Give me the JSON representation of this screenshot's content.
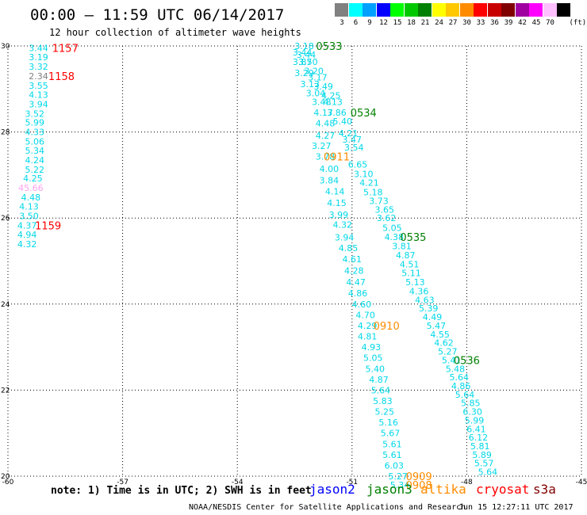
{
  "title": "00:00 – 11:59 UTC 06/14/2017",
  "subtitle": "12 hour collection of altimeter wave heights",
  "legend": {
    "unit_label": "(ft)",
    "bins": [
      {
        "label": "3",
        "color": "#808080"
      },
      {
        "label": "6",
        "color": "#00ffff"
      },
      {
        "label": "9",
        "color": "#00a0ff"
      },
      {
        "label": "12",
        "color": "#0000ff"
      },
      {
        "label": "15",
        "color": "#00ff00"
      },
      {
        "label": "18",
        "color": "#00c800"
      },
      {
        "label": "21",
        "color": "#008000"
      },
      {
        "label": "24",
        "color": "#ffff00"
      },
      {
        "label": "27",
        "color": "#ffc800"
      },
      {
        "label": "30",
        "color": "#ff8c00"
      },
      {
        "label": "33",
        "color": "#ff0000"
      },
      {
        "label": "36",
        "color": "#c80000"
      },
      {
        "label": "39",
        "color": "#800000"
      },
      {
        "label": "42",
        "color": "#a000a0"
      },
      {
        "label": "45",
        "color": "#ff00ff"
      },
      {
        "label": "70",
        "color": "#ffc0ff"
      },
      {
        "label": "",
        "color": "#000000"
      }
    ]
  },
  "map": {
    "lon_range": [
      -60,
      -45
    ],
    "lat_range": [
      20,
      30
    ],
    "lon_ticks": [
      "-60",
      "-57",
      "-54",
      "-51",
      "-48",
      "-45"
    ],
    "lat_ticks": [
      "20",
      "22",
      "24",
      "26",
      "28",
      "30"
    ],
    "grid": "dotted"
  },
  "chart_data": {
    "type": "scatter",
    "tracks": [
      {
        "color": "#00d8e8",
        "points": [
          {
            "lon": -59.2,
            "lat": 29.95,
            "label": "3.44"
          },
          {
            "lon": -59.2,
            "lat": 29.74,
            "label": "3.19"
          },
          {
            "lon": -59.2,
            "lat": 29.52,
            "label": "3.32"
          },
          {
            "lon": -59.2,
            "lat": 29.3,
            "label": "2.34",
            "color": "#808080"
          },
          {
            "lon": -59.2,
            "lat": 29.08,
            "label": "3.55"
          },
          {
            "lon": -59.2,
            "lat": 28.87,
            "label": "4.13"
          },
          {
            "lon": -59.2,
            "lat": 28.65,
            "label": "3.94"
          },
          {
            "lon": -59.3,
            "lat": 28.43,
            "label": "3.52"
          },
          {
            "lon": -59.3,
            "lat": 28.22,
            "label": "5.99"
          },
          {
            "lon": -59.3,
            "lat": 28.0,
            "label": "4.33"
          },
          {
            "lon": -59.3,
            "lat": 27.78,
            "label": "5.06"
          },
          {
            "lon": -59.3,
            "lat": 27.57,
            "label": "5.34"
          },
          {
            "lon": -59.3,
            "lat": 27.35,
            "label": "4.24"
          },
          {
            "lon": -59.3,
            "lat": 27.13,
            "label": "5.22"
          },
          {
            "lon": -59.35,
            "lat": 26.92,
            "label": "4.25"
          },
          {
            "lon": -59.4,
            "lat": 26.7,
            "label": "45.66",
            "color": "#ffa0f0"
          },
          {
            "lon": -59.4,
            "lat": 26.48,
            "label": "4.48"
          },
          {
            "lon": -59.45,
            "lat": 26.27,
            "label": "4.13"
          },
          {
            "lon": -59.45,
            "lat": 26.05,
            "label": "3.50"
          },
          {
            "lon": -59.5,
            "lat": 25.83,
            "label": "4.37"
          },
          {
            "lon": -59.5,
            "lat": 25.62,
            "label": "4.94"
          },
          {
            "lon": -59.5,
            "lat": 25.4,
            "label": "4.32"
          }
        ]
      },
      {
        "color": "#00d8e8",
        "points": [
          {
            "lon": -52.25,
            "lat": 30.0,
            "label": "3.18"
          },
          {
            "lon": -52.3,
            "lat": 29.85,
            "label": "3.44"
          },
          {
            "lon": -52.2,
            "lat": 29.8,
            "label": "3.44"
          },
          {
            "lon": -52.3,
            "lat": 29.63,
            "label": "3.87"
          },
          {
            "lon": -52.15,
            "lat": 29.63,
            "label": "3.50"
          },
          {
            "lon": -52.0,
            "lat": 29.42,
            "label": "3.20"
          },
          {
            "lon": -52.25,
            "lat": 29.37,
            "label": "3.29"
          },
          {
            "lon": -51.9,
            "lat": 29.27,
            "label": "3.17"
          },
          {
            "lon": -52.1,
            "lat": 29.12,
            "label": "3.13"
          },
          {
            "lon": -51.75,
            "lat": 29.06,
            "label": "3.49"
          },
          {
            "lon": -51.95,
            "lat": 28.9,
            "label": "3.04"
          },
          {
            "lon": -51.55,
            "lat": 28.85,
            "label": "4.25"
          },
          {
            "lon": -51.8,
            "lat": 28.7,
            "label": "3.48"
          },
          {
            "lon": -51.5,
            "lat": 28.7,
            "label": "4.13"
          },
          {
            "lon": -51.75,
            "lat": 28.45,
            "label": "4.17"
          },
          {
            "lon": -51.4,
            "lat": 28.45,
            "label": "3.86"
          },
          {
            "lon": -51.25,
            "lat": 28.25,
            "label": "5.40"
          },
          {
            "lon": -51.7,
            "lat": 28.2,
            "label": "4.48"
          },
          {
            "lon": -51.1,
            "lat": 27.97,
            "label": "4.21"
          },
          {
            "lon": -51.7,
            "lat": 27.92,
            "label": "4.27"
          },
          {
            "lon": -51.0,
            "lat": 27.83,
            "label": "3.47"
          },
          {
            "lon": -51.8,
            "lat": 27.68,
            "label": "3.27"
          },
          {
            "lon": -50.95,
            "lat": 27.64,
            "label": "3.54"
          },
          {
            "lon": -51.7,
            "lat": 27.43,
            "label": "3.78"
          },
          {
            "lon": -50.85,
            "lat": 27.25,
            "label": "6.65"
          },
          {
            "lon": -51.6,
            "lat": 27.15,
            "label": "4.00"
          },
          {
            "lon": -50.7,
            "lat": 27.03,
            "label": "3.10"
          },
          {
            "lon": -51.6,
            "lat": 26.88,
            "label": "3.84"
          },
          {
            "lon": -50.55,
            "lat": 26.82,
            "label": "4.21"
          },
          {
            "lon": -51.45,
            "lat": 26.62,
            "label": "4.14"
          },
          {
            "lon": -50.45,
            "lat": 26.6,
            "label": "5.18"
          },
          {
            "lon": -50.3,
            "lat": 26.4,
            "label": "3.73"
          },
          {
            "lon": -51.4,
            "lat": 26.35,
            "label": "4.15"
          },
          {
            "lon": -50.15,
            "lat": 26.2,
            "label": "3.65"
          },
          {
            "lon": -51.35,
            "lat": 26.08,
            "label": "3.99"
          },
          {
            "lon": -50.1,
            "lat": 26.0,
            "label": "3.62"
          },
          {
            "lon": -51.25,
            "lat": 25.85,
            "label": "4.32"
          },
          {
            "lon": -49.95,
            "lat": 25.77,
            "label": "5.05"
          },
          {
            "lon": -51.2,
            "lat": 25.55,
            "label": "3.94"
          },
          {
            "lon": -49.9,
            "lat": 25.56,
            "label": "4.38"
          },
          {
            "lon": -51.1,
            "lat": 25.3,
            "label": "4.85"
          },
          {
            "lon": -49.7,
            "lat": 25.35,
            "label": "3.81"
          },
          {
            "lon": -51.0,
            "lat": 25.05,
            "label": "4.61"
          },
          {
            "lon": -49.6,
            "lat": 25.14,
            "label": "4.87"
          },
          {
            "lon": -50.95,
            "lat": 24.78,
            "label": "4.28"
          },
          {
            "lon": -49.5,
            "lat": 24.93,
            "label": "4.51"
          },
          {
            "lon": -50.9,
            "lat": 24.51,
            "label": "4.47"
          },
          {
            "lon": -49.45,
            "lat": 24.72,
            "label": "5.11"
          },
          {
            "lon": -50.85,
            "lat": 24.25,
            "label": "4.86"
          },
          {
            "lon": -49.35,
            "lat": 24.51,
            "label": "5.13"
          },
          {
            "lon": -49.25,
            "lat": 24.3,
            "label": "4.36"
          },
          {
            "lon": -50.75,
            "lat": 24.0,
            "label": "4.60"
          },
          {
            "lon": -49.1,
            "lat": 24.1,
            "label": "4.63"
          },
          {
            "lon": -50.65,
            "lat": 23.75,
            "label": "4.70"
          },
          {
            "lon": -49.0,
            "lat": 23.9,
            "label": "5.39"
          },
          {
            "lon": -50.6,
            "lat": 23.5,
            "label": "4.29"
          },
          {
            "lon": -48.9,
            "lat": 23.7,
            "label": "4.49"
          },
          {
            "lon": -50.6,
            "lat": 23.25,
            "label": "4.81"
          },
          {
            "lon": -48.8,
            "lat": 23.5,
            "label": "5.47"
          },
          {
            "lon": -48.7,
            "lat": 23.3,
            "label": "4.55"
          },
          {
            "lon": -50.5,
            "lat": 23.0,
            "label": "4.93"
          },
          {
            "lon": -48.6,
            "lat": 23.1,
            "label": "4.62"
          },
          {
            "lon": -50.45,
            "lat": 22.75,
            "label": "5.05"
          },
          {
            "lon": -48.5,
            "lat": 22.9,
            "label": "5.27"
          },
          {
            "lon": -50.4,
            "lat": 22.5,
            "label": "5.40"
          },
          {
            "lon": -48.4,
            "lat": 22.7,
            "label": "5.41"
          },
          {
            "lon": -48.3,
            "lat": 22.5,
            "label": "5.48"
          },
          {
            "lon": -50.3,
            "lat": 22.25,
            "label": "4.87"
          },
          {
            "lon": -48.2,
            "lat": 22.3,
            "label": "5.64"
          },
          {
            "lon": -50.25,
            "lat": 22.0,
            "label": "5.64"
          },
          {
            "lon": -48.15,
            "lat": 22.1,
            "label": "4.86"
          },
          {
            "lon": -50.2,
            "lat": 21.75,
            "label": "5.83"
          },
          {
            "lon": -48.05,
            "lat": 21.9,
            "label": "5.64"
          },
          {
            "lon": -50.15,
            "lat": 21.5,
            "label": "5.25"
          },
          {
            "lon": -47.9,
            "lat": 21.7,
            "label": "5.85"
          },
          {
            "lon": -50.05,
            "lat": 21.25,
            "label": "5.16"
          },
          {
            "lon": -47.85,
            "lat": 21.5,
            "label": "6.30"
          },
          {
            "lon": -50.0,
            "lat": 21.0,
            "label": "5.67"
          },
          {
            "lon": -47.8,
            "lat": 21.3,
            "label": "5.99"
          },
          {
            "lon": -49.95,
            "lat": 20.75,
            "label": "5.61"
          },
          {
            "lon": -47.75,
            "lat": 21.1,
            "label": "6.41"
          },
          {
            "lon": -47.7,
            "lat": 20.9,
            "label": "6.12"
          },
          {
            "lon": -49.95,
            "lat": 20.5,
            "label": "5.61"
          },
          {
            "lon": -47.65,
            "lat": 20.7,
            "label": "5.81"
          },
          {
            "lon": -49.9,
            "lat": 20.25,
            "label": "6.03"
          },
          {
            "lon": -47.6,
            "lat": 20.5,
            "label": "5.89"
          },
          {
            "lon": -49.8,
            "lat": 20.0,
            "label": "5.27"
          },
          {
            "lon": -47.55,
            "lat": 20.3,
            "label": "5.57"
          },
          {
            "lon": -49.75,
            "lat": 19.8,
            "label": "5.34"
          },
          {
            "lon": -47.45,
            "lat": 20.1,
            "label": "5.64"
          }
        ]
      }
    ],
    "time_labels": [
      {
        "lon": -58.5,
        "lat": 29.95,
        "label": "1157",
        "color": "#ff0000"
      },
      {
        "lon": -58.6,
        "lat": 29.3,
        "label": "1158",
        "color": "#ff0000"
      },
      {
        "lon": -58.95,
        "lat": 25.83,
        "label": "1159",
        "color": "#ff0000"
      },
      {
        "lon": -51.6,
        "lat": 30.0,
        "label": "0533",
        "color": "#008000"
      },
      {
        "lon": -50.7,
        "lat": 28.45,
        "label": "0534",
        "color": "#008000"
      },
      {
        "lon": -49.4,
        "lat": 25.56,
        "label": "0535",
        "color": "#008000"
      },
      {
        "lon": -48.0,
        "lat": 22.7,
        "label": "0536",
        "color": "#008000"
      },
      {
        "lon": -51.4,
        "lat": 27.43,
        "label": "0911",
        "color": "#ff8c00"
      },
      {
        "lon": -50.1,
        "lat": 23.5,
        "label": "0910",
        "color": "#ff8c00"
      },
      {
        "lon": -49.25,
        "lat": 20.0,
        "label": "0909",
        "color": "#ff8c00"
      },
      {
        "lon": -49.25,
        "lat": 19.8,
        "label": "0908",
        "color": "#ff8c00"
      }
    ]
  },
  "footer": {
    "note": "note: 1) Time is in UTC; 2) SWH is in feet",
    "satellites": [
      {
        "name": "jason2",
        "color": "#0000ff"
      },
      {
        "name": "jason3",
        "color": "#008000"
      },
      {
        "name": "altika",
        "color": "#ff8c00"
      },
      {
        "name": "cryosat",
        "color": "#ff0000"
      },
      {
        "name": "s3a",
        "color": "#800000"
      }
    ],
    "credit": "NOAA/NESDIS Center for Satellite Applications and Research",
    "timestamp": "Jun 15 12:27:11 UTC 2017"
  }
}
